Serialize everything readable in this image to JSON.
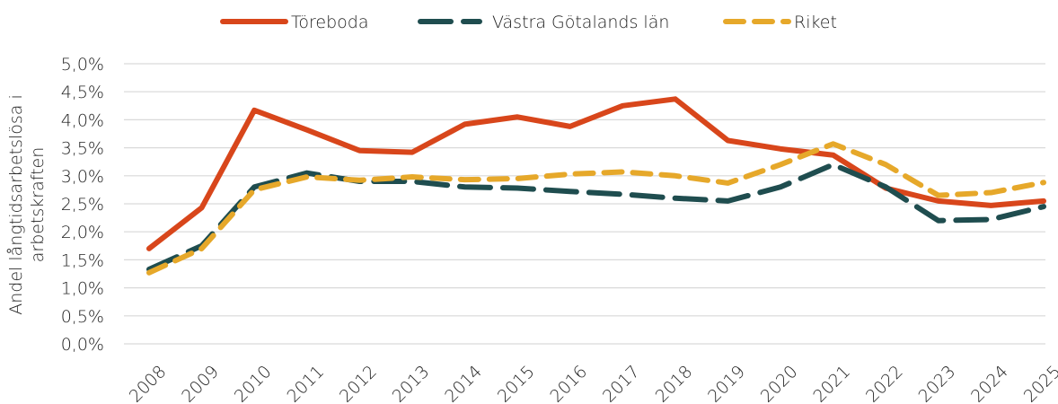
{
  "chart_data": {
    "type": "line",
    "ylabel": [
      "Andel långtidsarbetslösa i",
      "arbetskraften"
    ],
    "categories": [
      "2008",
      "2009",
      "2010",
      "2011",
      "2012",
      "2013",
      "2014",
      "2015",
      "2016",
      "2017",
      "2018",
      "2019",
      "2020",
      "2021",
      "2022",
      "2023",
      "2024",
      "2025"
    ],
    "series": [
      {
        "name": "Töreboda",
        "color": "#d8461b",
        "dash": "solid",
        "values": [
          1.7,
          2.43,
          4.17,
          3.82,
          3.45,
          3.42,
          3.92,
          4.05,
          3.88,
          4.25,
          4.37,
          3.63,
          3.48,
          3.37,
          2.78,
          2.55,
          2.47,
          2.55
        ]
      },
      {
        "name": "Västra Götalands län",
        "color": "#1f4d4f",
        "dash": "long",
        "values": [
          1.33,
          1.75,
          2.8,
          3.05,
          2.9,
          2.9,
          2.8,
          2.78,
          2.72,
          2.67,
          2.6,
          2.55,
          2.8,
          3.2,
          2.8,
          2.2,
          2.22,
          2.45
        ]
      },
      {
        "name": "Riket",
        "color": "#e6a82a",
        "dash": "short",
        "values": [
          1.27,
          1.7,
          2.75,
          2.98,
          2.92,
          2.98,
          2.93,
          2.95,
          3.03,
          3.07,
          3.0,
          2.87,
          3.2,
          3.57,
          3.2,
          2.65,
          2.7,
          2.88
        ]
      }
    ],
    "ylim": [
      0,
      5
    ],
    "yticks": [
      {
        "value": 0,
        "label": "0,0%"
      },
      {
        "value": 0.5,
        "label": "0,5%"
      },
      {
        "value": 1,
        "label": "1,0%"
      },
      {
        "value": 1.5,
        "label": "1,5%"
      },
      {
        "value": 2,
        "label": "2,0%"
      },
      {
        "value": 2.5,
        "label": "2,5%"
      },
      {
        "value": 3,
        "label": "3,0%"
      },
      {
        "value": 3.5,
        "label": "3,5%"
      },
      {
        "value": 4,
        "label": "4,0%"
      },
      {
        "value": 4.5,
        "label": "4,5%"
      },
      {
        "value": 5,
        "label": "5,0%"
      }
    ],
    "grid": true,
    "legend": "top"
  }
}
